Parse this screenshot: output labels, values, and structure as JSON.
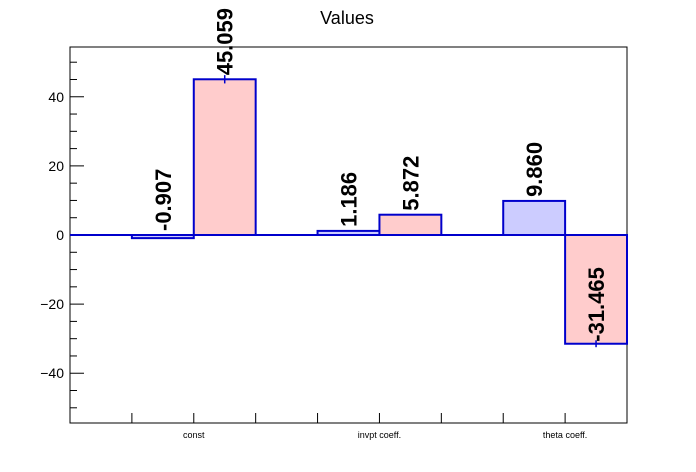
{
  "chart_data": {
    "type": "bar",
    "title": "Values",
    "categories": [
      "const",
      "invpt coeff.",
      "theta coeff."
    ],
    "ylim": [
      -54.4,
      54.4
    ],
    "yticks": [
      -40,
      -20,
      0,
      20,
      40
    ],
    "ytick_labels": [
      "−40",
      "−20",
      "0",
      "20",
      "40"
    ],
    "bars": [
      {
        "category": "const",
        "value": -0.907,
        "label": "-0.907",
        "fill": "#ccccff",
        "error": 0
      },
      {
        "category": "const",
        "value": 45.059,
        "label": "45.059",
        "fill": "#ffcccc",
        "error": 1.2
      },
      {
        "category": "invpt coeff.",
        "value": 1.186,
        "label": "1.186",
        "fill": "#ccccff",
        "error": 0
      },
      {
        "category": "invpt coeff.",
        "value": 5.872,
        "label": "5.872",
        "fill": "#ffcccc",
        "error": 0
      },
      {
        "category": "theta coeff.",
        "value": 9.86,
        "label": "9.860",
        "fill": "#ccccff",
        "error": 0
      },
      {
        "category": "theta coeff.",
        "value": -31.465,
        "label": "-31.465",
        "fill": "#ffcccc",
        "error": 1.0
      }
    ],
    "colors": {
      "outline": "#0000cc",
      "axis": "#000000"
    },
    "grid": false,
    "legend": "none"
  }
}
